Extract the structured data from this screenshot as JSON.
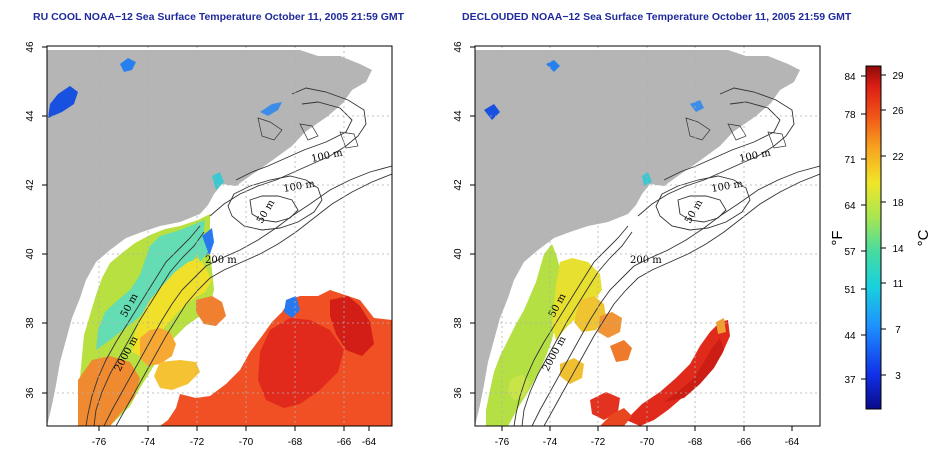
{
  "panels": [
    {
      "title": "RU COOL NOAA−12 Sea Surface Temperature October 11, 2005 21:59 GMT",
      "x_ticks": [
        "-76",
        "-74",
        "-72",
        "-70",
        "-68",
        "-66",
        "-64"
      ],
      "y_ticks": [
        "36",
        "38",
        "40",
        "42",
        "44",
        "46"
      ],
      "contour_labels": [
        "100 m",
        "100 m",
        "50 m",
        "200 m",
        "50 m",
        "2000 m"
      ]
    },
    {
      "title": "DECLOUDED NOAA−12 Sea Surface Temperature October 11, 2005 21:59 GMT",
      "x_ticks": [
        "-76",
        "-74",
        "-72",
        "-70",
        "-68",
        "-66",
        "-64"
      ],
      "y_ticks": [
        "36",
        "38",
        "40",
        "42",
        "44",
        "46"
      ],
      "contour_labels": [
        "100 m",
        "100 m",
        "50 m",
        "200 m",
        "50 m",
        "2000 m"
      ]
    }
  ],
  "colorbar": {
    "fahrenheit_ticks": [
      "84",
      "78",
      "71",
      "64",
      "57",
      "51",
      "44",
      "37"
    ],
    "celsius_ticks": [
      "29",
      "26",
      "22",
      "18",
      "14",
      "11",
      "7",
      "3"
    ],
    "unit_f": "°F",
    "unit_c": "°C"
  },
  "colors": {
    "title": "#1f2a9c",
    "land": "#b5b5b5",
    "grid": "#b0b0b0"
  }
}
